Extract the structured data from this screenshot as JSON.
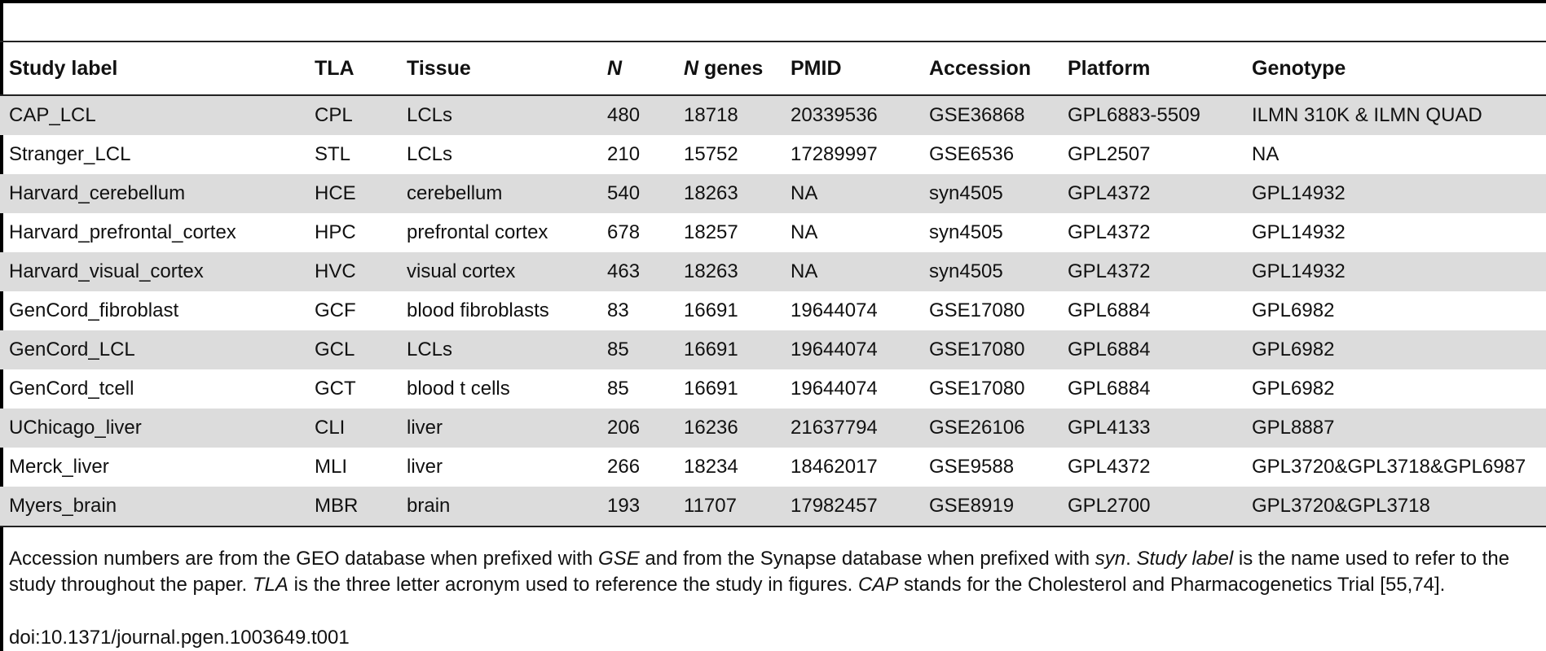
{
  "table": {
    "headers": {
      "study_label": "Study label",
      "tla": "TLA",
      "tissue": "Tissue",
      "n": "N",
      "n_genes_italic": "N",
      "n_genes_rest": " genes",
      "pmid": "PMID",
      "accession": "Accession",
      "platform": "Platform",
      "genotype": "Genotype"
    },
    "rows": [
      [
        "CAP_LCL",
        "CPL",
        "LCLs",
        "480",
        "18718",
        "20339536",
        "GSE36868",
        "GPL6883-5509",
        "ILMN 310K & ILMN QUAD"
      ],
      [
        "Stranger_LCL",
        "STL",
        "LCLs",
        "210",
        "15752",
        "17289997",
        "GSE6536",
        "GPL2507",
        "NA"
      ],
      [
        "Harvard_cerebellum",
        "HCE",
        "cerebellum",
        "540",
        "18263",
        "NA",
        "syn4505",
        "GPL4372",
        "GPL14932"
      ],
      [
        "Harvard_prefrontal_cortex",
        "HPC",
        "prefrontal cortex",
        "678",
        "18257",
        "NA",
        "syn4505",
        "GPL4372",
        "GPL14932"
      ],
      [
        "Harvard_visual_cortex",
        "HVC",
        "visual cortex",
        "463",
        "18263",
        "NA",
        "syn4505",
        "GPL4372",
        "GPL14932"
      ],
      [
        "GenCord_fibroblast",
        "GCF",
        "blood fibroblasts",
        "83",
        "16691",
        "19644074",
        "GSE17080",
        "GPL6884",
        "GPL6982"
      ],
      [
        "GenCord_LCL",
        "GCL",
        "LCLs",
        "85",
        "16691",
        "19644074",
        "GSE17080",
        "GPL6884",
        "GPL6982"
      ],
      [
        "GenCord_tcell",
        "GCT",
        "blood t cells",
        "85",
        "16691",
        "19644074",
        "GSE17080",
        "GPL6884",
        "GPL6982"
      ],
      [
        "UChicago_liver",
        "CLI",
        "liver",
        "206",
        "16236",
        "21637794",
        "GSE26106",
        "GPL4133",
        "GPL8887"
      ],
      [
        "Merck_liver",
        "MLI",
        "liver",
        "266",
        "18234",
        "18462017",
        "GSE9588",
        "GPL4372",
        "GPL3720&GPL3718&GPL6987"
      ],
      [
        "Myers_brain",
        "MBR",
        "brain",
        "193",
        "11707",
        "17982457",
        "GSE8919",
        "GPL2700",
        "GPL3720&GPL3718"
      ]
    ]
  },
  "footnote": {
    "p1": "Accession numbers are from the GEO database when prefixed with ",
    "gse": "GSE",
    "p2": " and from the Synapse database when prefixed with ",
    "syn": "syn",
    "p3": ". ",
    "study_label": "Study label",
    "p4": " is the name used to refer to the study throughout the paper. ",
    "tla": "TLA",
    "p5": " is the three letter acronym used to reference the study in figures. ",
    "cap": "CAP",
    "p6": " stands for the Cholesterol and Pharmacogenetics Trial [55,74]."
  },
  "doi": "doi:10.1371/journal.pgen.1003649.t001"
}
